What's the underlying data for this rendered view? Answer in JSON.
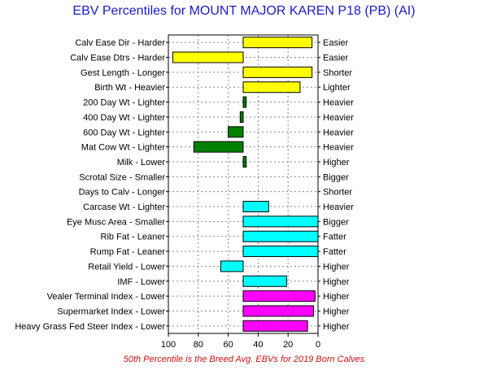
{
  "chart_data": {
    "type": "bar",
    "orientation": "horizontal",
    "title": "EBV Percentiles for MOUNT MAJOR KAREN P18 (PB) (AI)",
    "footnote": "50th Percentile is the Breed Avg. EBVs for 2019 Born Calves",
    "xlim": [
      100,
      0
    ],
    "xticks": [
      100,
      80,
      60,
      40,
      20,
      0
    ],
    "baseline": 50,
    "grid": true,
    "colors": {
      "calving": "#ffff00",
      "growth": "#008000",
      "carcase": "#00ffff",
      "index": "#ff00ff",
      "title": "#1a1acc",
      "footnote": "#cc1111"
    },
    "traits": [
      {
        "left_label": "Calv Ease Dir - Harder",
        "right_label": "Easier",
        "value": 4,
        "group": "calving"
      },
      {
        "left_label": "Calv Ease Dtrs - Harder",
        "right_label": "Easier",
        "value": 97,
        "group": "calving"
      },
      {
        "left_label": "Gest Length - Longer",
        "right_label": "Shorter",
        "value": 4,
        "group": "calving"
      },
      {
        "left_label": "Birth Wt - Heavier",
        "right_label": "Lighter",
        "value": 12,
        "group": "calving"
      },
      {
        "left_label": "200 Day Wt - Lighter",
        "right_label": "Heavier",
        "value": 48,
        "group": "growth"
      },
      {
        "left_label": "400 Day Wt - Lighter",
        "right_label": "Heavier",
        "value": 52,
        "group": "growth"
      },
      {
        "left_label": "600 Day Wt - Lighter",
        "right_label": "Heavier",
        "value": 60,
        "group": "growth"
      },
      {
        "left_label": "Mat Cow Wt - Lighter",
        "right_label": "Heavier",
        "value": 83,
        "group": "growth"
      },
      {
        "left_label": "Milk - Lower",
        "right_label": "Higher",
        "value": 48,
        "group": "growth"
      },
      {
        "left_label": "Scrotal Size - Smaller",
        "right_label": "Bigger",
        "value": null,
        "group": "growth"
      },
      {
        "left_label": "Days to Calv - Longer",
        "right_label": "Shorter",
        "value": null,
        "group": "growth"
      },
      {
        "left_label": "Carcase Wt - Lighter",
        "right_label": "Heavier",
        "value": 33,
        "group": "carcase"
      },
      {
        "left_label": "Eye Musc Area - Smaller",
        "right_label": "Bigger",
        "value": 0,
        "group": "carcase"
      },
      {
        "left_label": "Rib Fat - Leaner",
        "right_label": "Fatter",
        "value": 0,
        "group": "carcase"
      },
      {
        "left_label": "Rump Fat - Leaner",
        "right_label": "Fatter",
        "value": 0,
        "group": "carcase"
      },
      {
        "left_label": "Retail Yield - Lower",
        "right_label": "Higher",
        "value": 65,
        "group": "carcase"
      },
      {
        "left_label": "IMF - Lower",
        "right_label": "Higher",
        "value": 21,
        "group": "carcase"
      },
      {
        "left_label": "Vealer Terminal Index - Lower",
        "right_label": "Higher",
        "value": 2,
        "group": "index"
      },
      {
        "left_label": "Supermarket Index - Lower",
        "right_label": "Higher",
        "value": 3,
        "group": "index"
      },
      {
        "left_label": "Heavy Grass Fed Steer Index - Lower",
        "right_label": "Higher",
        "value": 7,
        "group": "index"
      }
    ]
  }
}
